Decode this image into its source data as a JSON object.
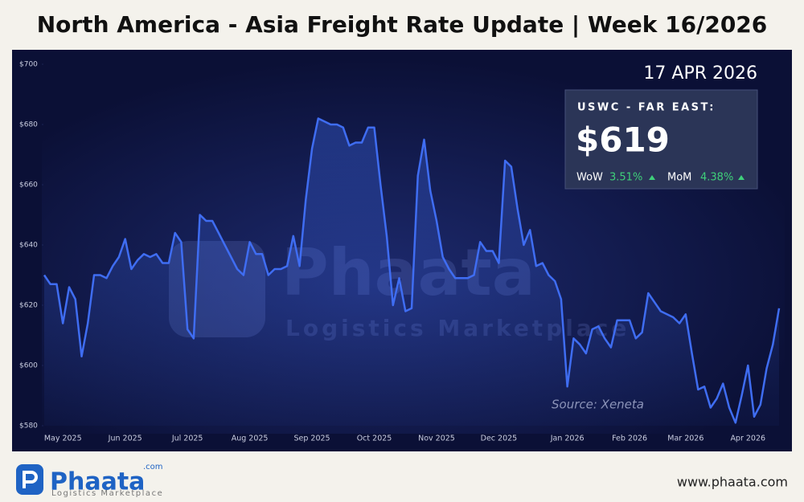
{
  "chart_data": {
    "type": "line",
    "title": "North America - Asia Freight Rate Update | Week 16/2026",
    "categories": [
      null,
      null,
      null,
      "May 2025",
      null,
      null,
      null,
      null,
      null,
      null,
      null,
      null,
      null,
      "Jun 2025",
      null,
      null,
      null,
      null,
      null,
      null,
      null,
      null,
      null,
      "Jul 2025",
      null,
      null,
      null,
      null,
      null,
      null,
      null,
      null,
      null,
      "Aug 2025",
      null,
      null,
      null,
      null,
      null,
      null,
      null,
      null,
      null,
      "Sep 2025",
      null,
      null,
      null,
      null,
      null,
      null,
      null,
      null,
      null,
      "Oct 2025",
      null,
      null,
      null,
      null,
      null,
      null,
      null,
      null,
      null,
      "Nov 2025",
      null,
      null,
      null,
      null,
      null,
      null,
      null,
      null,
      null,
      "Dec 2025",
      null,
      null,
      null,
      null,
      null,
      null,
      null,
      null,
      null,
      null,
      "Jan 2026",
      null,
      null,
      null,
      null,
      null,
      null,
      null,
      null,
      null,
      "Feb 2026",
      null,
      null,
      null,
      null,
      null,
      null,
      null,
      null,
      "Mar 2026",
      null,
      null,
      null,
      null,
      null,
      null,
      null,
      null,
      null,
      "Apr 2026",
      null,
      null,
      null,
      null,
      null
    ],
    "series": [
      {
        "color": "#3f6df2",
        "values": [
          630,
          627,
          627,
          614,
          626,
          622,
          603,
          614,
          630,
          630,
          629,
          633,
          636,
          642,
          632,
          635,
          637,
          636,
          637,
          634,
          634,
          644,
          641,
          612,
          609,
          650,
          648,
          648,
          644,
          640,
          636,
          632,
          630,
          641,
          637,
          637,
          630,
          632,
          632,
          633,
          643,
          633,
          655,
          672,
          682,
          681,
          680,
          680,
          679,
          673,
          674,
          674,
          679,
          679,
          660,
          643,
          620,
          629,
          618,
          619,
          663,
          675,
          658,
          648,
          636,
          632,
          629,
          629,
          629,
          630,
          641,
          638,
          638,
          634,
          668,
          666,
          652,
          640,
          645,
          633,
          634,
          630,
          628,
          622,
          593,
          609,
          607,
          604,
          612,
          613,
          609,
          606,
          615,
          615,
          615,
          609,
          611,
          624,
          621,
          618,
          617,
          616,
          614,
          617,
          604,
          592,
          593,
          586,
          589,
          594,
          586,
          581,
          590,
          600,
          583,
          587,
          599,
          607,
          619
        ]
      }
    ],
    "ylim": [
      580,
      700
    ],
    "yticks": [
      {
        "value": 580,
        "label": "$580"
      },
      {
        "value": 600,
        "label": "$600"
      },
      {
        "value": 620,
        "label": "$620"
      },
      {
        "value": 640,
        "label": "$640"
      },
      {
        "value": 660,
        "label": "$660"
      },
      {
        "value": 680,
        "label": "$680"
      },
      {
        "value": 700,
        "label": "$700"
      }
    ],
    "grid": false,
    "date": "17 APR 2026",
    "source": "Source: Xeneta"
  },
  "card": {
    "route": "USWC - FAR EAST:",
    "price": "$619",
    "wow_label": "WoW",
    "wow": "3.51%",
    "mom_label": "MoM",
    "mom": "4.38%"
  },
  "footer": {
    "brand": "Phaata",
    "brand_suffix": ".com",
    "tagline": "Logistics Marketplace",
    "website": "www.phaata.com"
  }
}
